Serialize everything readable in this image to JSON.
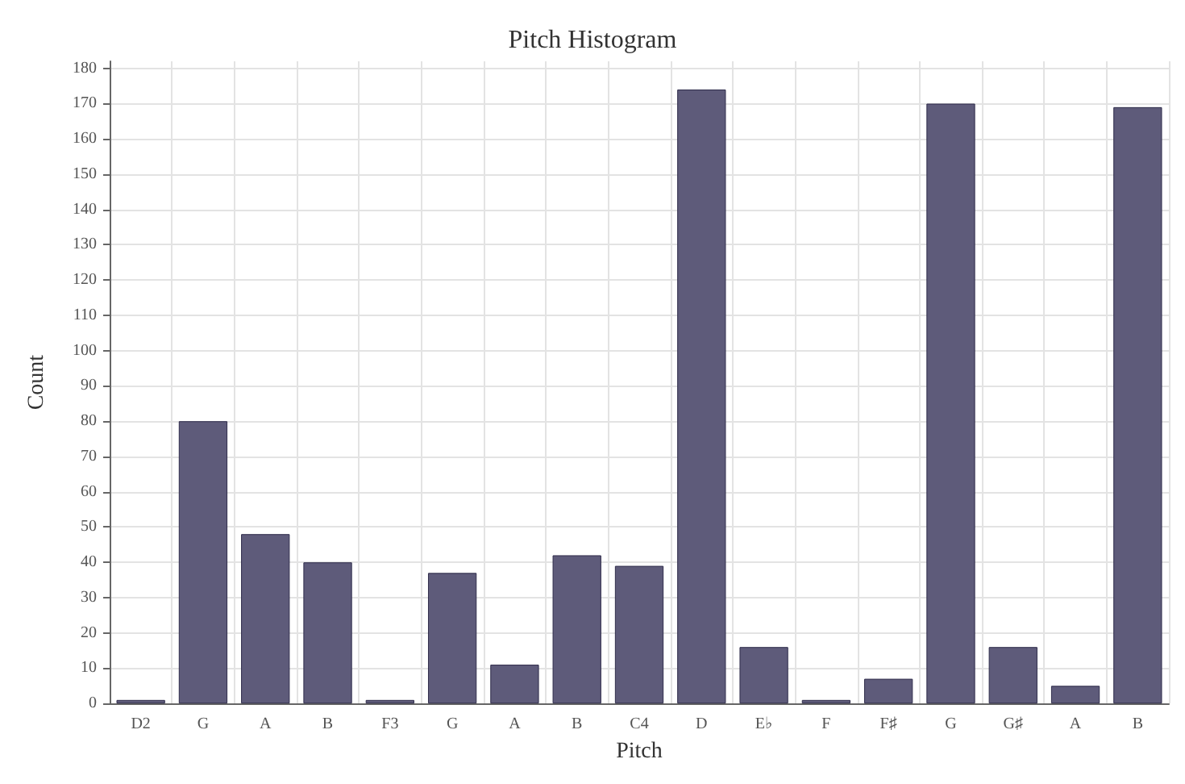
{
  "chart_data": {
    "type": "bar",
    "title": "Pitch Histogram",
    "xlabel": "Pitch",
    "ylabel": "Count",
    "categories": [
      "D2",
      "G",
      "A",
      "B",
      "F3",
      "G",
      "A",
      "B",
      "C4",
      "D",
      "E♭",
      "F",
      "F♯",
      "G",
      "G♯",
      "A",
      "B"
    ],
    "values": [
      1,
      80,
      48,
      40,
      1,
      37,
      11,
      42,
      39,
      174,
      16,
      1,
      7,
      170,
      16,
      5,
      169
    ],
    "color": "#5e5b7a",
    "ylim": [
      0,
      182
    ],
    "yticks": [
      0,
      10,
      20,
      30,
      40,
      50,
      60,
      70,
      80,
      90,
      100,
      110,
      120,
      130,
      140,
      150,
      160,
      170,
      180
    ],
    "grid": true
  }
}
